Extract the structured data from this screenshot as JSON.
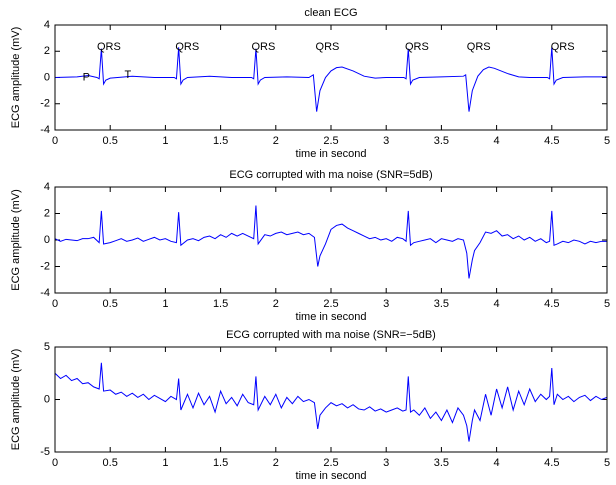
{
  "chart_data": [
    {
      "type": "line",
      "title": "clean ECG",
      "xlabel": "time in second",
      "ylabel": "ECG amplitude (mV)",
      "x": [
        0,
        0.2,
        0.3,
        0.38,
        0.4,
        0.42,
        0.44,
        0.46,
        0.5,
        0.7,
        0.9,
        1.08,
        1.1,
        1.12,
        1.14,
        1.16,
        1.2,
        1.4,
        1.6,
        1.78,
        1.8,
        1.82,
        1.84,
        1.86,
        1.9,
        2.1,
        2.3,
        2.34,
        2.37,
        2.4,
        2.45,
        2.5,
        2.55,
        2.6,
        2.7,
        2.8,
        2.9,
        3.0,
        3.16,
        3.18,
        3.2,
        3.22,
        3.24,
        3.3,
        3.5,
        3.7,
        3.72,
        3.75,
        3.78,
        3.83,
        3.88,
        3.93,
        3.98,
        4.1,
        4.2,
        4.3,
        4.46,
        4.48,
        4.5,
        4.52,
        4.54,
        4.6,
        4.8,
        5.0
      ],
      "series": [
        {
          "color": "#0000ff",
          "values": [
            0,
            0.05,
            0.15,
            0,
            -0.1,
            2.2,
            -0.5,
            -0.2,
            -0.05,
            0.1,
            0,
            0,
            -0.1,
            2.3,
            -0.5,
            -0.2,
            0,
            0.1,
            0,
            0,
            -0.1,
            2.2,
            -0.5,
            -0.2,
            0,
            0.05,
            0,
            0.2,
            -2.6,
            -1,
            0,
            0.5,
            0.75,
            0.8,
            0.5,
            0.1,
            -0.05,
            0,
            0,
            -0.1,
            2.2,
            -0.5,
            -0.2,
            0,
            0.05,
            0.1,
            0.2,
            -2.6,
            -1,
            0.1,
            0.6,
            0.8,
            0.7,
            0.3,
            0.05,
            0,
            0,
            -0.1,
            2.3,
            -0.5,
            -0.2,
            0,
            0.05,
            0.05
          ]
        }
      ],
      "annotations": [
        {
          "text": "QRS",
          "x": 0.38,
          "y": 2.3
        },
        {
          "text": "QRS",
          "x": 1.09,
          "y": 2.3
        },
        {
          "text": "QRS",
          "x": 1.78,
          "y": 2.3
        },
        {
          "text": "QRS",
          "x": 2.36,
          "y": 2.3
        },
        {
          "text": "QRS",
          "x": 3.17,
          "y": 2.3
        },
        {
          "text": "QRS",
          "x": 3.73,
          "y": 2.3
        },
        {
          "text": "QRS",
          "x": 4.49,
          "y": 2.3
        },
        {
          "text": "P",
          "x": 0.25,
          "y": 0
        },
        {
          "text": "T",
          "x": 0.63,
          "y": 0.2
        }
      ],
      "xlim": [
        0,
        5
      ],
      "xticks": [
        0,
        0.5,
        1,
        1.5,
        2,
        2.5,
        3,
        3.5,
        4,
        4.5,
        5
      ],
      "ylim": [
        -4,
        4
      ],
      "yticks": [
        -4,
        -2,
        0,
        2,
        4
      ]
    },
    {
      "type": "line",
      "title": "ECG corrupted with ma noise (SNR=5dB)",
      "xlabel": "time in second",
      "ylabel": "ECG amplitude (mV)",
      "x": [
        0,
        0.05,
        0.1,
        0.15,
        0.2,
        0.25,
        0.3,
        0.35,
        0.4,
        0.42,
        0.44,
        0.5,
        0.55,
        0.6,
        0.65,
        0.7,
        0.75,
        0.8,
        0.85,
        0.9,
        0.95,
        1.0,
        1.05,
        1.1,
        1.12,
        1.14,
        1.2,
        1.25,
        1.3,
        1.35,
        1.4,
        1.45,
        1.5,
        1.55,
        1.6,
        1.65,
        1.7,
        1.75,
        1.8,
        1.82,
        1.84,
        1.9,
        1.95,
        2.0,
        2.05,
        2.1,
        2.15,
        2.2,
        2.25,
        2.3,
        2.35,
        2.38,
        2.4,
        2.45,
        2.5,
        2.55,
        2.6,
        2.65,
        2.7,
        2.75,
        2.8,
        2.85,
        2.9,
        2.95,
        3.0,
        3.05,
        3.1,
        3.15,
        3.18,
        3.2,
        3.22,
        3.25,
        3.3,
        3.35,
        3.4,
        3.45,
        3.5,
        3.55,
        3.6,
        3.65,
        3.7,
        3.73,
        3.75,
        3.78,
        3.8,
        3.85,
        3.9,
        3.95,
        4.0,
        4.05,
        4.1,
        4.15,
        4.2,
        4.25,
        4.3,
        4.35,
        4.4,
        4.45,
        4.48,
        4.5,
        4.52,
        4.55,
        4.6,
        4.65,
        4.7,
        4.75,
        4.8,
        4.85,
        4.9,
        4.95,
        5.0
      ],
      "series": [
        {
          "color": "#0000ff",
          "values": [
            0.1,
            -0.1,
            0.05,
            0.0,
            -0.05,
            0.1,
            0.1,
            0.2,
            -0.2,
            2.2,
            -0.3,
            -0.2,
            -0.05,
            0.1,
            -0.1,
            0.0,
            0.15,
            -0.1,
            0.05,
            0.2,
            0.0,
            0.1,
            -0.1,
            -0.2,
            2.1,
            -0.4,
            0.0,
            0.1,
            -0.05,
            0.2,
            0.3,
            0.1,
            0.4,
            0.2,
            0.5,
            0.3,
            0.5,
            0.3,
            0.1,
            2.6,
            -0.3,
            0.4,
            0.3,
            0.5,
            0.6,
            0.4,
            0.5,
            0.6,
            0.4,
            0.5,
            0.2,
            -2.0,
            -1.2,
            -0.3,
            0.8,
            1.1,
            1.2,
            0.9,
            0.7,
            0.5,
            0.3,
            0.1,
            0.2,
            0.0,
            0.1,
            -0.1,
            0.2,
            0.1,
            -0.1,
            2.2,
            -0.4,
            -0.2,
            -0.1,
            0.0,
            0.1,
            -0.2,
            0.1,
            0.0,
            -0.1,
            0.1,
            0.0,
            -1.0,
            -2.9,
            -1.5,
            -0.8,
            -0.2,
            0.6,
            0.5,
            0.7,
            0.3,
            0.4,
            0.1,
            0.3,
            0.0,
            0.2,
            -0.1,
            0.1,
            -0.2,
            -0.1,
            2.2,
            -0.4,
            -0.3,
            -0.1,
            -0.2,
            0.0,
            -0.1,
            -0.3,
            -0.1,
            -0.2,
            -0.1,
            -0.1
          ]
        }
      ],
      "xlim": [
        0,
        5
      ],
      "xticks": [
        0,
        0.5,
        1,
        1.5,
        2,
        2.5,
        3,
        3.5,
        4,
        4.5,
        5
      ],
      "ylim": [
        -4,
        4
      ],
      "yticks": [
        -4,
        -2,
        0,
        2,
        4
      ]
    },
    {
      "type": "line",
      "title": "ECG corrupted with ma noise (SNR=−5dB)",
      "xlabel": "time in second",
      "ylabel": "ECG amplitude (mV)",
      "x": [
        0,
        0.05,
        0.1,
        0.15,
        0.2,
        0.25,
        0.3,
        0.35,
        0.4,
        0.42,
        0.44,
        0.5,
        0.55,
        0.6,
        0.65,
        0.7,
        0.75,
        0.8,
        0.85,
        0.9,
        0.95,
        1.0,
        1.05,
        1.1,
        1.12,
        1.14,
        1.2,
        1.25,
        1.3,
        1.35,
        1.4,
        1.45,
        1.5,
        1.55,
        1.6,
        1.65,
        1.7,
        1.75,
        1.8,
        1.82,
        1.84,
        1.9,
        1.95,
        2.0,
        2.05,
        2.1,
        2.15,
        2.2,
        2.25,
        2.3,
        2.35,
        2.38,
        2.4,
        2.45,
        2.5,
        2.55,
        2.6,
        2.65,
        2.7,
        2.75,
        2.8,
        2.85,
        2.9,
        2.95,
        3.0,
        3.05,
        3.1,
        3.15,
        3.18,
        3.2,
        3.22,
        3.25,
        3.3,
        3.35,
        3.4,
        3.45,
        3.5,
        3.55,
        3.6,
        3.65,
        3.7,
        3.73,
        3.75,
        3.78,
        3.8,
        3.85,
        3.9,
        3.95,
        4.0,
        4.05,
        4.1,
        4.15,
        4.2,
        4.25,
        4.3,
        4.35,
        4.4,
        4.45,
        4.48,
        4.5,
        4.52,
        4.55,
        4.6,
        4.65,
        4.7,
        4.75,
        4.8,
        4.85,
        4.9,
        4.95,
        5.0
      ],
      "series": [
        {
          "color": "#0000ff",
          "values": [
            2.5,
            2.0,
            2.3,
            1.8,
            2.0,
            1.5,
            1.6,
            1.2,
            1.0,
            3.5,
            0.8,
            0.9,
            0.5,
            0.7,
            0.3,
            0.6,
            0.2,
            0.5,
            0.0,
            0.4,
            0.1,
            -0.2,
            0.3,
            0.0,
            2.0,
            -1.0,
            0.5,
            -0.8,
            0.6,
            -0.5,
            0.3,
            -1.2,
            0.8,
            -0.4,
            0.2,
            -0.6,
            0.5,
            -0.3,
            -0.5,
            2.2,
            -1.0,
            0.3,
            -0.5,
            0.5,
            -0.8,
            0.2,
            -0.4,
            0.3,
            -0.2,
            0.0,
            -0.3,
            -2.8,
            -1.5,
            -0.8,
            -0.3,
            -0.6,
            -0.4,
            -0.8,
            -0.5,
            -0.9,
            -1.0,
            -0.7,
            -1.1,
            -0.9,
            -1.2,
            -1.0,
            -0.8,
            -1.1,
            -1.0,
            2.2,
            -1.2,
            -1.0,
            -1.5,
            -0.8,
            -1.8,
            -1.2,
            -2.0,
            -1.0,
            -2.2,
            -0.8,
            -1.5,
            -2.5,
            -4.0,
            -2.0,
            -1.0,
            -2.0,
            0.5,
            -1.5,
            1.0,
            -0.8,
            1.2,
            -1.0,
            0.8,
            -0.5,
            1.0,
            -0.2,
            0.5,
            0.0,
            0.3,
            3.0,
            -0.5,
            0.5,
            0.0,
            0.3,
            -0.2,
            0.2,
            0.4,
            -0.1,
            0.3,
            0.0,
            0.2
          ]
        }
      ],
      "xlim": [
        0,
        5
      ],
      "xticks": [
        0,
        0.5,
        1,
        1.5,
        2,
        2.5,
        3,
        3.5,
        4,
        4.5,
        5
      ],
      "ylim": [
        -5,
        5
      ],
      "yticks": [
        -5,
        0,
        5
      ]
    }
  ]
}
